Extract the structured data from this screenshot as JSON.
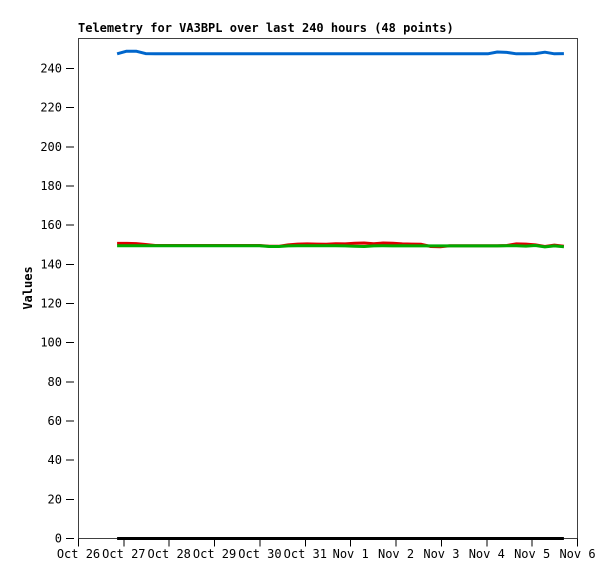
{
  "window": {
    "background": "#ffffff",
    "text_color": "#000000",
    "frame_color": "#404040"
  },
  "chart_data": {
    "type": "line",
    "title": "Telemetry for VA3BPL over last 240 hours (48 points)",
    "ylabel": "Values",
    "xlabel": "",
    "grid": false,
    "legend": "none",
    "ylim": [
      0,
      255.3
    ],
    "yticks": [
      0,
      20,
      40,
      60,
      80,
      100,
      120,
      140,
      160,
      180,
      200,
      220,
      240
    ],
    "x_axis": {
      "tick_labels": [
        "Oct 26",
        "Oct 27",
        "Oct 28",
        "Oct 29",
        "Oct 30",
        "Oct 31",
        "Nov 1",
        "Nov 2",
        "Nov 3",
        "Nov 4",
        "Nov 5",
        "Nov 6"
      ],
      "domain_days": 11,
      "data_start_day": 0.85,
      "data_end_day": 10.7
    },
    "points_per_series": 48,
    "series": [
      {
        "name": "black",
        "color": "#000000",
        "width": 3,
        "values": [
          0,
          0,
          0,
          0,
          0,
          0,
          0,
          0,
          0,
          0,
          0,
          0,
          0,
          0,
          0,
          0,
          0,
          0,
          0,
          0,
          0,
          0,
          0,
          0,
          0,
          0,
          0,
          0,
          0,
          0,
          0,
          0,
          0,
          0,
          0,
          0,
          0,
          0,
          0,
          0,
          0,
          0,
          0,
          0,
          0,
          0,
          0,
          0
        ]
      },
      {
        "name": "red",
        "color": "#dd0000",
        "width": 3,
        "values": [
          150.7,
          150.7,
          150.6,
          150.1,
          149.6,
          149.6,
          149.6,
          149.6,
          149.6,
          149.6,
          149.6,
          149.6,
          149.6,
          149.6,
          149.6,
          149.6,
          149.2,
          149.2,
          149.9,
          150.3,
          150.4,
          150.3,
          150.2,
          150.5,
          150.4,
          150.8,
          150.9,
          150.5,
          150.9,
          150.8,
          150.4,
          150.3,
          150.2,
          149.1,
          149.0,
          149.5,
          149.5,
          149.5,
          149.5,
          149.5,
          149.5,
          149.6,
          150.4,
          150.3,
          149.9,
          149.1,
          149.8,
          149.2
        ]
      },
      {
        "name": "green",
        "color": "#00aa00",
        "width": 3,
        "values": [
          149.5,
          149.5,
          149.5,
          149.5,
          149.5,
          149.5,
          149.5,
          149.5,
          149.5,
          149.5,
          149.5,
          149.5,
          149.5,
          149.5,
          149.5,
          149.5,
          149.1,
          149.1,
          149.4,
          149.5,
          149.5,
          149.5,
          149.5,
          149.5,
          149.4,
          149.2,
          149.1,
          149.4,
          149.5,
          149.4,
          149.5,
          149.4,
          149.4,
          149.4,
          149.4,
          149.4,
          149.4,
          149.4,
          149.4,
          149.4,
          149.4,
          149.5,
          149.5,
          149.3,
          149.6,
          148.9,
          149.4,
          149.0
        ]
      },
      {
        "name": "blue",
        "color": "#0066cc",
        "width": 3,
        "values": [
          247.5,
          248.8,
          248.8,
          247.6,
          247.5,
          247.5,
          247.5,
          247.5,
          247.5,
          247.5,
          247.5,
          247.5,
          247.5,
          247.5,
          247.5,
          247.5,
          247.5,
          247.5,
          247.5,
          247.5,
          247.5,
          247.5,
          247.5,
          247.5,
          247.5,
          247.5,
          247.5,
          247.5,
          247.5,
          247.5,
          247.5,
          247.5,
          247.5,
          247.5,
          247.5,
          247.5,
          247.5,
          247.5,
          247.5,
          247.5,
          248.4,
          248.2,
          247.5,
          247.5,
          247.6,
          248.3,
          247.5,
          247.6
        ]
      }
    ]
  }
}
